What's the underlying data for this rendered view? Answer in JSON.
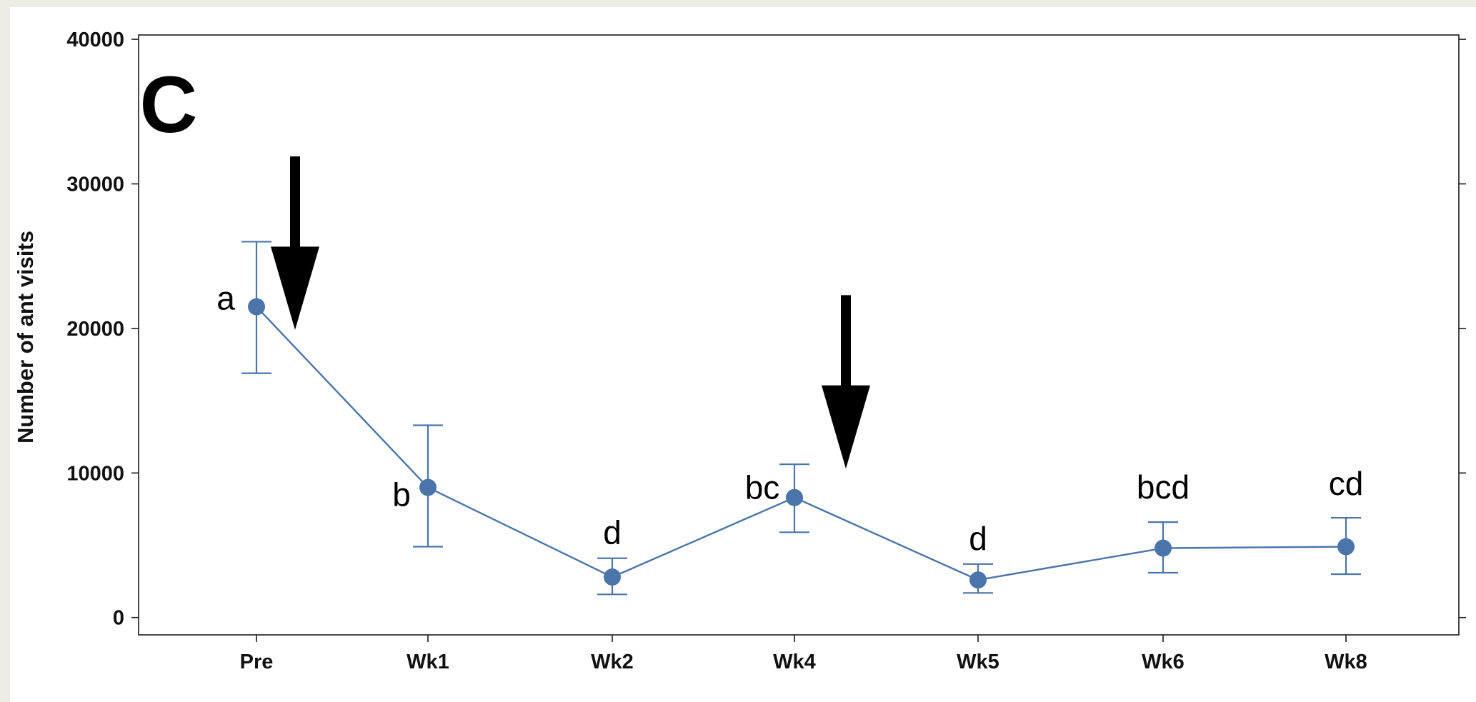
{
  "chart_data": {
    "type": "line",
    "panel_label": "C",
    "ylabel": "Number of ant visits",
    "xlabel": "",
    "categories": [
      "Pre",
      "Wk1",
      "Wk2",
      "Wk4",
      "Wk5",
      "Wk6",
      "Wk8"
    ],
    "yticks": [
      0,
      10000,
      20000,
      30000,
      40000
    ],
    "ylim": [
      -1200,
      40300
    ],
    "series": [
      {
        "values": [
          21500,
          9000,
          2800,
          8300,
          2600,
          4800,
          4900
        ],
        "err_low": [
          16900,
          4900,
          1600,
          5900,
          1700,
          3100,
          3000
        ],
        "err_high": [
          26000,
          13300,
          4100,
          10600,
          3700,
          6600,
          6900
        ],
        "significance": [
          "a",
          "b",
          "d",
          "bc",
          "d",
          "bcd",
          "cd"
        ],
        "color": "#4a74aa"
      }
    ],
    "annotations": [
      {
        "type": "arrow-down",
        "near": "Pre",
        "from_y": 31900,
        "to_y": 19900
      },
      {
        "type": "arrow-down",
        "near": "Wk4",
        "from_y": 22300,
        "to_y": 10300
      }
    ],
    "grid": false,
    "legend": "none"
  }
}
